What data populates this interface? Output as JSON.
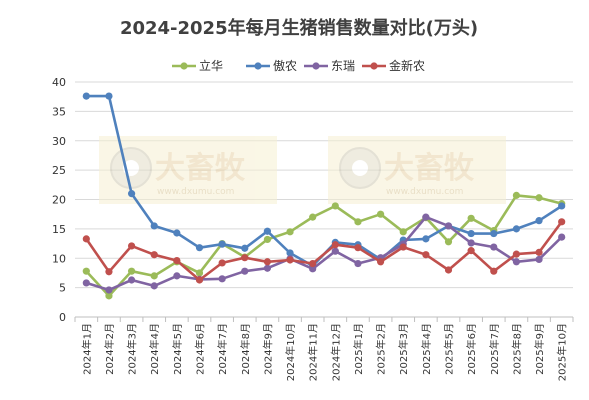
{
  "chart_data": {
    "type": "line",
    "title": "2024-2025年每月生猪销售数量对比(万头)",
    "xlabel": "",
    "ylabel": "",
    "ylim": [
      0,
      40
    ],
    "yticks": [
      0,
      5,
      10,
      15,
      20,
      25,
      30,
      35,
      40
    ],
    "grid": true,
    "legend_position": "top",
    "categories": [
      "2024年1月",
      "2024年2月",
      "2024年3月",
      "2024年4月",
      "2024年5月",
      "2024年6月",
      "2024年7月",
      "2024年8月",
      "2024年9月",
      "2024年10月",
      "2024年11月",
      "2024年12月",
      "2025年1月",
      "2025年2月",
      "2025年3月",
      "2025年4月",
      "2025年5月",
      "2025年6月",
      "2025年7月",
      "2025年8月",
      "2025年9月",
      "2025年10月"
    ],
    "series": [
      {
        "name": "立华",
        "color": "#9bbb59",
        "values": [
          7.8,
          3.6,
          7.8,
          7.0,
          9.4,
          7.5,
          12.5,
          10.2,
          13.2,
          14.5,
          17.0,
          18.9,
          16.2,
          17.5,
          14.5,
          16.9,
          12.8,
          16.8,
          14.7,
          20.7,
          20.3,
          19.3
        ]
      },
      {
        "name": "傲农",
        "color": "#4f81bd",
        "values": [
          37.6,
          37.6,
          21.0,
          15.5,
          14.3,
          11.8,
          12.4,
          11.7,
          14.6,
          10.9,
          8.7,
          12.7,
          12.3,
          9.8,
          13.1,
          13.3,
          15.5,
          14.2,
          14.2,
          15.0,
          16.4,
          18.9
        ]
      },
      {
        "name": "东瑞",
        "color": "#8064a2",
        "values": [
          5.8,
          4.6,
          6.3,
          5.3,
          7.0,
          6.4,
          6.5,
          7.8,
          8.3,
          9.9,
          8.2,
          11.2,
          9.1,
          10.1,
          12.4,
          17.0,
          15.5,
          12.6,
          11.9,
          9.4,
          9.8,
          13.6
        ]
      },
      {
        "name": "金新农",
        "color": "#c0504d",
        "values": [
          13.3,
          7.7,
          12.1,
          10.6,
          9.6,
          6.3,
          9.2,
          10.1,
          9.4,
          9.7,
          9.1,
          12.3,
          11.8,
          9.4,
          11.9,
          10.6,
          8.0,
          11.3,
          7.8,
          10.7,
          11.0,
          16.2
        ]
      }
    ]
  },
  "watermark": {
    "brand": "大畜牧",
    "url": "www.dxumu.com"
  }
}
